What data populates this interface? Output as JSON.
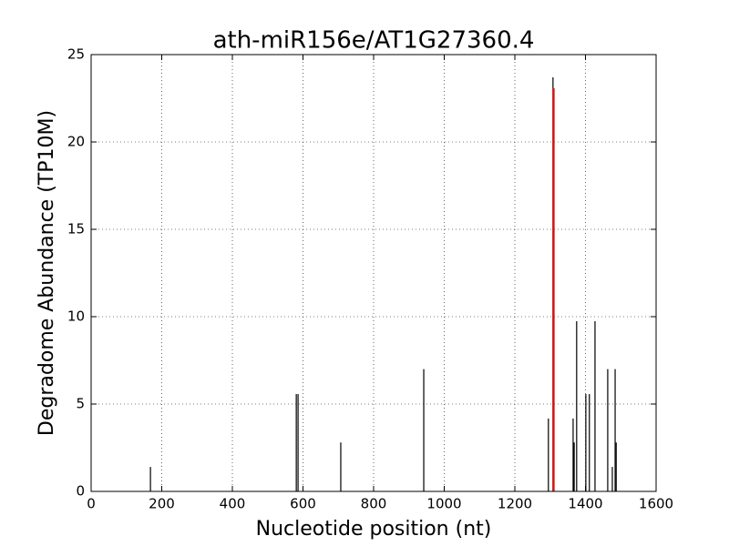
{
  "chart_data": {
    "type": "stem",
    "title": "ath-miR156e/AT1G27360.4",
    "x_label": "Nucleotide position (nt)",
    "y_label": "Degradome Abundance (TP10M)",
    "xlim": [
      0,
      1600
    ],
    "xticks": [
      0,
      200,
      400,
      600,
      800,
      1000,
      1200,
      1400,
      1600
    ],
    "ylim": [
      0,
      25
    ],
    "yticks": [
      0,
      5,
      10,
      15,
      20,
      25
    ],
    "grid": true,
    "series": [
      {
        "color": "#000000",
        "x": [
          168,
          581,
          586,
          707,
          942,
          1295,
          1308,
          1365,
          1368,
          1375,
          1401,
          1411,
          1427,
          1463,
          1476,
          1484,
          1487
        ],
        "values": [
          1.4,
          5.57,
          5.57,
          2.8,
          7.0,
          4.17,
          23.7,
          4.17,
          2.8,
          9.74,
          5.57,
          5.57,
          9.74,
          7.0,
          1.4,
          7.0,
          2.8
        ]
      },
      {
        "color": "#ff0000",
        "x": [
          1310
        ],
        "values": [
          23.07
        ]
      }
    ]
  }
}
